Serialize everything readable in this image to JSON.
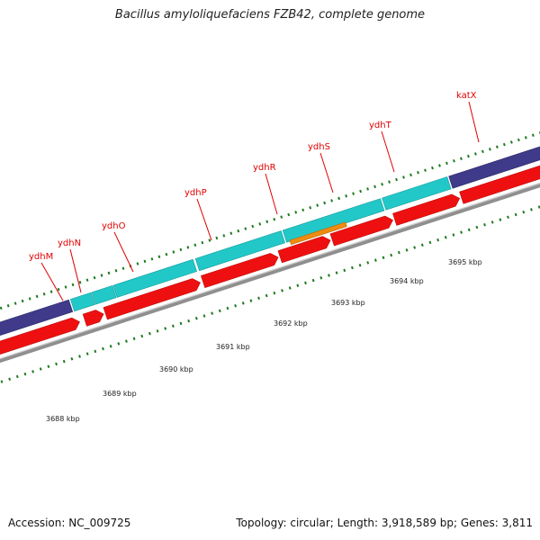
{
  "title": "Bacillus amyloliquefaciens FZB42, complete genome",
  "footer": {
    "accession": "Accession: NC_009725",
    "summary": "Topology: circular; Length: 3,918,589 bp; Genes: 3,811"
  },
  "colors": {
    "cds_forward": "#ee1010",
    "gene_track": "#22c8c8",
    "other_feature": "#3f3b8a",
    "highlight": "#ee8c10",
    "backbone": "#8f8f8f",
    "tick": "#1e7a1e",
    "gene_label": "#e00000"
  },
  "gene_labels": [
    "ydhM",
    "ydhN",
    "ydhO",
    "ydhP",
    "ydhR",
    "ydhS",
    "ydhT",
    "katX"
  ],
  "ruler": {
    "unit": "kbp",
    "labels": [
      "3688 kbp",
      "3689 kbp",
      "3690 kbp",
      "3691 kbp",
      "3692 kbp",
      "3693 kbp",
      "3694 kbp",
      "3695 kbp"
    ]
  }
}
